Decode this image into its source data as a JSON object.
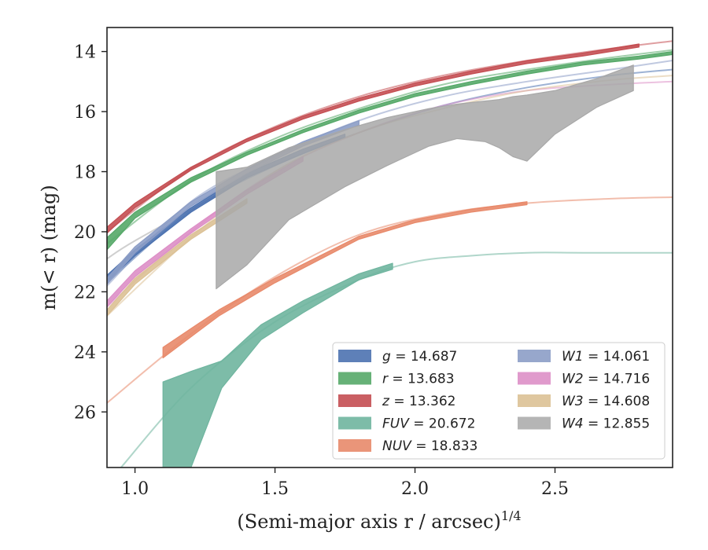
{
  "chart_data": {
    "type": "line",
    "xlabel": "(Semi-major axis r / arcsec)",
    "xlabel_exponent": "1/4",
    "ylabel": "m(< r) (mag)",
    "xlim": [
      0.9,
      2.92
    ],
    "ylim": [
      27.85,
      13.2
    ],
    "y_inverted": true,
    "x_ticks": [
      1.0,
      1.5,
      2.0,
      2.5
    ],
    "x_tick_labels": [
      "1.0",
      "1.5",
      "2.0",
      "2.5"
    ],
    "y_ticks": [
      14,
      16,
      18,
      20,
      22,
      24,
      26
    ],
    "y_tick_labels": [
      "14",
      "16",
      "18",
      "20",
      "22",
      "24",
      "26"
    ],
    "grid": false,
    "legend_position": "lower-right",
    "legend": [
      {
        "band": "g",
        "value": "14.687",
        "color": "#4c72b0"
      },
      {
        "band": "r",
        "value": "13.683",
        "color": "#55a868"
      },
      {
        "band": "z",
        "value": "13.362",
        "color": "#c44e52"
      },
      {
        "band": "FUV",
        "value": "20.672",
        "color": "#6fb59f"
      },
      {
        "band": "NUV",
        "value": "18.833",
        "color": "#e8896a"
      },
      {
        "band": "W1",
        "value": "14.061",
        "color": "#8c9dc6"
      },
      {
        "band": "W2",
        "value": "14.716",
        "color": "#dd8fc7"
      },
      {
        "band": "W3",
        "value": "14.608",
        "color": "#dcc195"
      },
      {
        "band": "W4",
        "value": "12.855",
        "color": "#a8a8a8"
      }
    ],
    "series": [
      {
        "name": "g",
        "color": "#4c72b0",
        "model": {
          "x": [
            0.9,
            1.2,
            1.5,
            1.8,
            2.1,
            2.4,
            2.7,
            2.92
          ],
          "y": [
            21.7,
            19.3,
            17.8,
            16.7,
            15.8,
            15.2,
            14.8,
            14.6
          ]
        },
        "band_x": [
          0.9,
          1.0,
          1.2,
          1.4,
          1.6,
          1.75
        ],
        "band_upper": [
          21.45,
          20.6,
          19.2,
          18.05,
          17.25,
          16.75
        ],
        "band_lower": [
          21.65,
          20.8,
          19.35,
          18.2,
          17.4,
          16.85
        ]
      },
      {
        "name": "r",
        "color": "#55a868",
        "model": {
          "x": [
            0.9,
            1.2,
            1.5,
            1.8,
            2.1,
            2.4,
            2.7,
            2.92
          ],
          "y": [
            20.4,
            18.3,
            16.9,
            15.9,
            15.1,
            14.6,
            14.2,
            13.95
          ]
        },
        "band_x": [
          0.9,
          1.0,
          1.2,
          1.4,
          1.6,
          1.8,
          2.0,
          2.2,
          2.4,
          2.6,
          2.8,
          2.92
        ],
        "band_upper": [
          20.2,
          19.35,
          18.2,
          17.35,
          16.6,
          15.95,
          15.4,
          15.0,
          14.65,
          14.35,
          14.15,
          14.0
        ],
        "band_lower": [
          20.6,
          19.55,
          18.35,
          17.45,
          16.7,
          16.05,
          15.5,
          15.1,
          14.75,
          14.45,
          14.25,
          14.1
        ]
      },
      {
        "name": "z",
        "color": "#c44e52",
        "model": {
          "x": [
            0.9,
            1.2,
            1.5,
            1.8,
            2.1,
            2.4,
            2.7,
            2.92
          ],
          "y": [
            20.0,
            17.9,
            16.5,
            15.5,
            14.8,
            14.3,
            13.9,
            13.65
          ]
        },
        "band_x": [
          0.9,
          1.0,
          1.2,
          1.4,
          1.6,
          1.8,
          2.0,
          2.2,
          2.4,
          2.6,
          2.8
        ],
        "band_upper": [
          19.85,
          19.05,
          17.85,
          16.9,
          16.15,
          15.55,
          15.05,
          14.65,
          14.3,
          14.05,
          13.75
        ],
        "band_lower": [
          20.05,
          19.2,
          17.95,
          17.0,
          16.25,
          15.65,
          15.15,
          14.75,
          14.4,
          14.15,
          13.85
        ]
      },
      {
        "name": "FUV",
        "color": "#6fb59f",
        "model": {
          "x": [
            0.95,
            1.2,
            1.5,
            1.8,
            2.0,
            2.2,
            2.4,
            2.6,
            2.92
          ],
          "y": [
            27.85,
            25.2,
            23.0,
            21.6,
            21.0,
            20.8,
            20.7,
            20.7,
            20.7
          ]
        },
        "band_x": [
          1.1,
          1.2,
          1.31,
          1.45,
          1.6,
          1.8,
          1.92
        ],
        "band_upper": [
          25.0,
          24.65,
          24.3,
          23.1,
          22.3,
          21.4,
          21.05
        ],
        "band_lower": [
          27.85,
          27.85,
          25.2,
          23.6,
          22.7,
          21.6,
          21.25
        ]
      },
      {
        "name": "NUV",
        "color": "#e8896a",
        "model": {
          "x": [
            0.9,
            1.2,
            1.5,
            1.8,
            2.1,
            2.4,
            2.7,
            2.92
          ],
          "y": [
            25.7,
            23.4,
            21.5,
            20.1,
            19.4,
            19.05,
            18.9,
            18.85
          ]
        },
        "band_x": [
          1.1,
          1.3,
          1.5,
          1.8,
          2.0,
          2.2,
          2.4
        ],
        "band_upper": [
          23.85,
          22.6,
          21.55,
          20.15,
          19.6,
          19.25,
          19.0
        ],
        "band_lower": [
          24.2,
          22.8,
          21.7,
          20.25,
          19.7,
          19.35,
          19.1
        ]
      },
      {
        "name": "W1",
        "color": "#8c9dc6",
        "model": {
          "x": [
            0.9,
            1.2,
            1.5,
            1.8,
            2.1,
            2.4,
            2.7,
            2.92
          ],
          "y": [
            21.8,
            19.0,
            17.5,
            16.3,
            15.5,
            15.0,
            14.6,
            14.3
          ]
        },
        "band_x": [
          0.9,
          1.0,
          1.2,
          1.4,
          1.6,
          1.8
        ],
        "band_upper": [
          21.55,
          20.5,
          19.0,
          17.9,
          17.0,
          16.3
        ],
        "band_lower": [
          21.75,
          20.7,
          19.15,
          18.05,
          17.15,
          16.45
        ]
      },
      {
        "name": "W2",
        "color": "#dd8fc7",
        "model": {
          "x": [
            0.9,
            1.2,
            1.5,
            1.8,
            2.1,
            2.4,
            2.7,
            2.92
          ],
          "y": [
            22.5,
            20.0,
            18.0,
            16.7,
            15.8,
            15.3,
            15.1,
            15.0
          ]
        },
        "band_x": [
          0.9,
          1.0,
          1.2,
          1.4,
          1.6
        ],
        "band_upper": [
          22.3,
          21.3,
          19.9,
          18.6,
          17.5
        ],
        "band_lower": [
          22.5,
          21.5,
          20.05,
          18.75,
          17.65
        ]
      },
      {
        "name": "W3",
        "color": "#dcc195",
        "model": {
          "x": [
            0.9,
            1.2,
            1.5,
            1.8,
            2.1,
            2.4,
            2.7,
            2.92
          ],
          "y": [
            22.8,
            20.2,
            18.0,
            16.7,
            15.9,
            15.3,
            14.95,
            14.8
          ]
        },
        "band_x": [
          0.9,
          1.0,
          1.2,
          1.4
        ],
        "band_upper": [
          22.6,
          21.55,
          20.1,
          18.9
        ],
        "band_lower": [
          22.8,
          21.75,
          20.25,
          19.05
        ]
      },
      {
        "name": "W4",
        "color": "#a8a8a8",
        "model": {
          "x": [
            0.9,
            1.0,
            1.29
          ],
          "y": [
            20.9,
            20.3,
            18.8
          ]
        },
        "band_x": [
          1.29,
          1.4,
          1.55,
          1.75,
          1.9,
          2.05,
          2.15,
          2.25,
          2.3,
          2.35,
          2.4,
          2.5,
          2.65,
          2.78
        ],
        "band_upper": [
          18.0,
          17.85,
          17.2,
          16.6,
          16.2,
          15.9,
          15.75,
          15.65,
          15.6,
          15.5,
          15.45,
          15.3,
          14.9,
          14.45
        ],
        "band_lower": [
          21.9,
          21.1,
          19.6,
          18.5,
          17.8,
          17.15,
          16.9,
          17.0,
          17.2,
          17.5,
          17.65,
          16.75,
          15.85,
          15.3
        ]
      }
    ]
  }
}
